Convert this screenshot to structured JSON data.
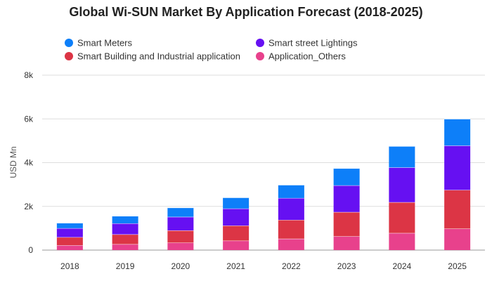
{
  "chart_data": {
    "type": "bar",
    "stacked": true,
    "title": "Global Wi-SUN Market By Application Forecast (2018-2025)",
    "xlabel": "",
    "ylabel": "USD Mn",
    "ylim": [
      0,
      8000
    ],
    "yticks": [
      0,
      2000,
      4000,
      6000,
      8000
    ],
    "ytick_labels": [
      "0",
      "2k",
      "4k",
      "6k",
      "8k"
    ],
    "grid": true,
    "legend_position": "top-left",
    "categories": [
      "2018",
      "2019",
      "2020",
      "2021",
      "2022",
      "2023",
      "2024",
      "2025"
    ],
    "series": [
      {
        "name": "Application_Others",
        "color": "#e8418c",
        "values": [
          220,
          270,
          340,
          430,
          520,
          630,
          780,
          980
        ]
      },
      {
        "name": "Smart Building and Industrial application",
        "color": "#dc3545",
        "values": [
          370,
          450,
          560,
          690,
          860,
          1110,
          1410,
          1770
        ]
      },
      {
        "name": "Smart street Lightings",
        "color": "#6610f2",
        "values": [
          410,
          500,
          620,
          780,
          1000,
          1220,
          1590,
          2030
        ]
      },
      {
        "name": "Smart Meters",
        "color": "#0d7ff9",
        "values": [
          240,
          340,
          420,
          500,
          600,
          780,
          970,
          1220
        ]
      }
    ],
    "legend_order": [
      "Smart Meters",
      "Smart street Lightings",
      "Smart Building and Industrial application",
      "Application_Others"
    ]
  }
}
